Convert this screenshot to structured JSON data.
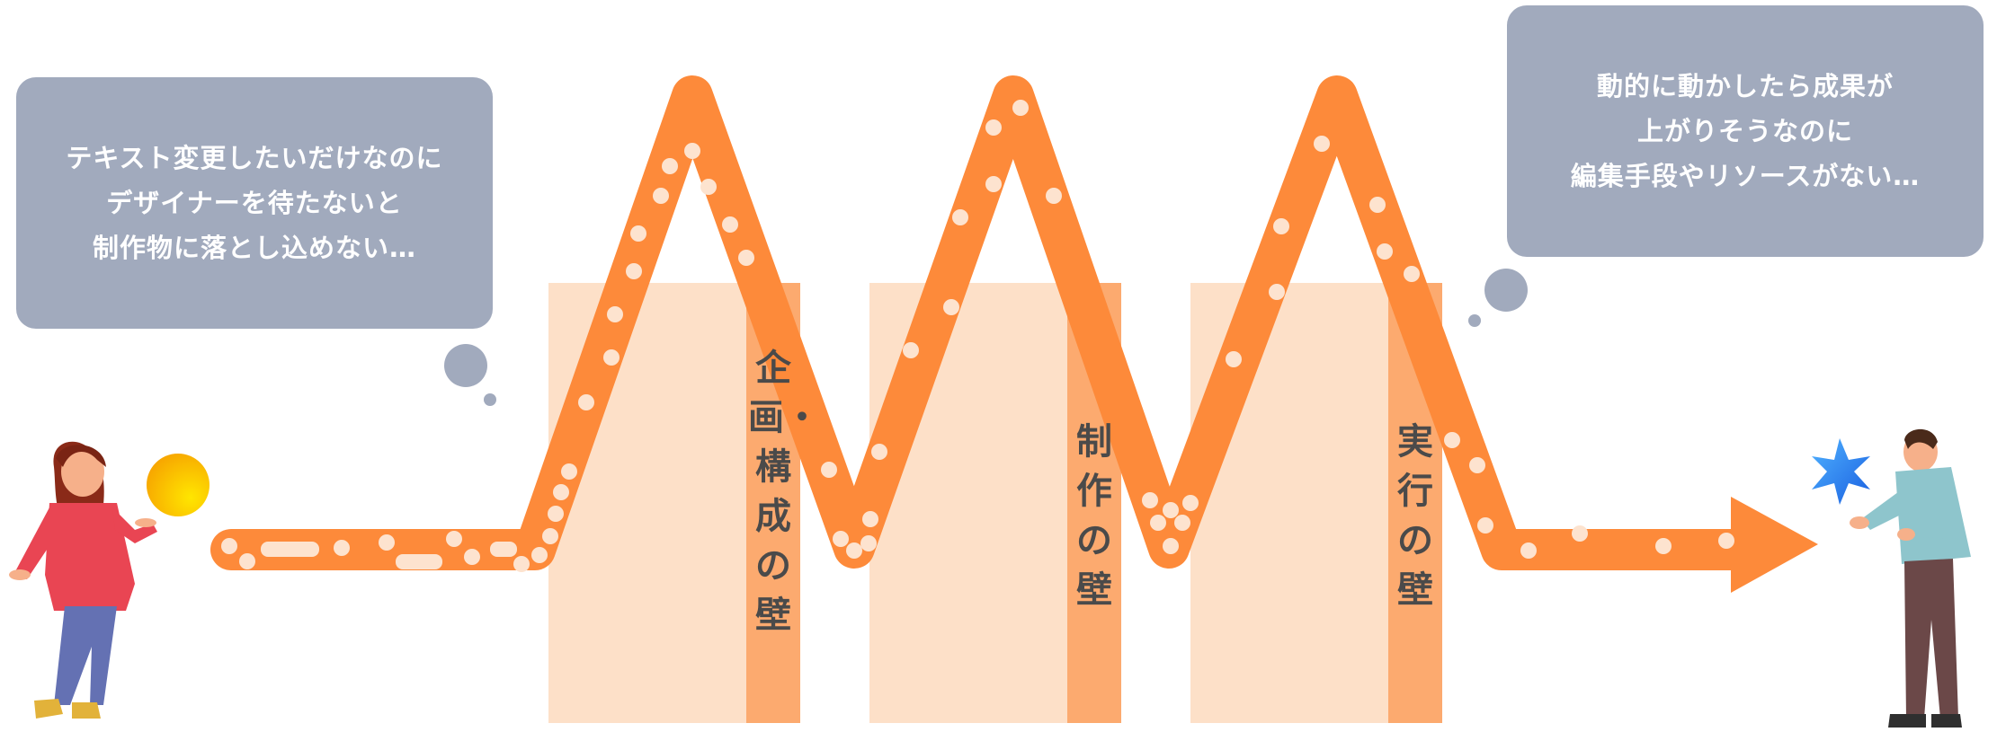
{
  "left_bubble": {
    "lines": [
      "テキスト変更したいだけなのに",
      "デザイナーを待たないと",
      "制作物に落とし込めない…"
    ]
  },
  "right_bubble": {
    "lines": [
      "動的に動かしたら成果が",
      "上がりそうなのに",
      "編集手段やリソースがない…"
    ]
  },
  "walls": [
    {
      "label": "企画・構成の壁"
    },
    {
      "label": "制作の壁"
    },
    {
      "label": "実行の壁"
    }
  ],
  "colors": {
    "bubble": "#a1aabd",
    "path": "#fd8a3a",
    "wall_light": "#fde0c8",
    "wall_strip": "#fcaa6f",
    "dot": "#fde3cf",
    "label": "#4a4a4a"
  }
}
